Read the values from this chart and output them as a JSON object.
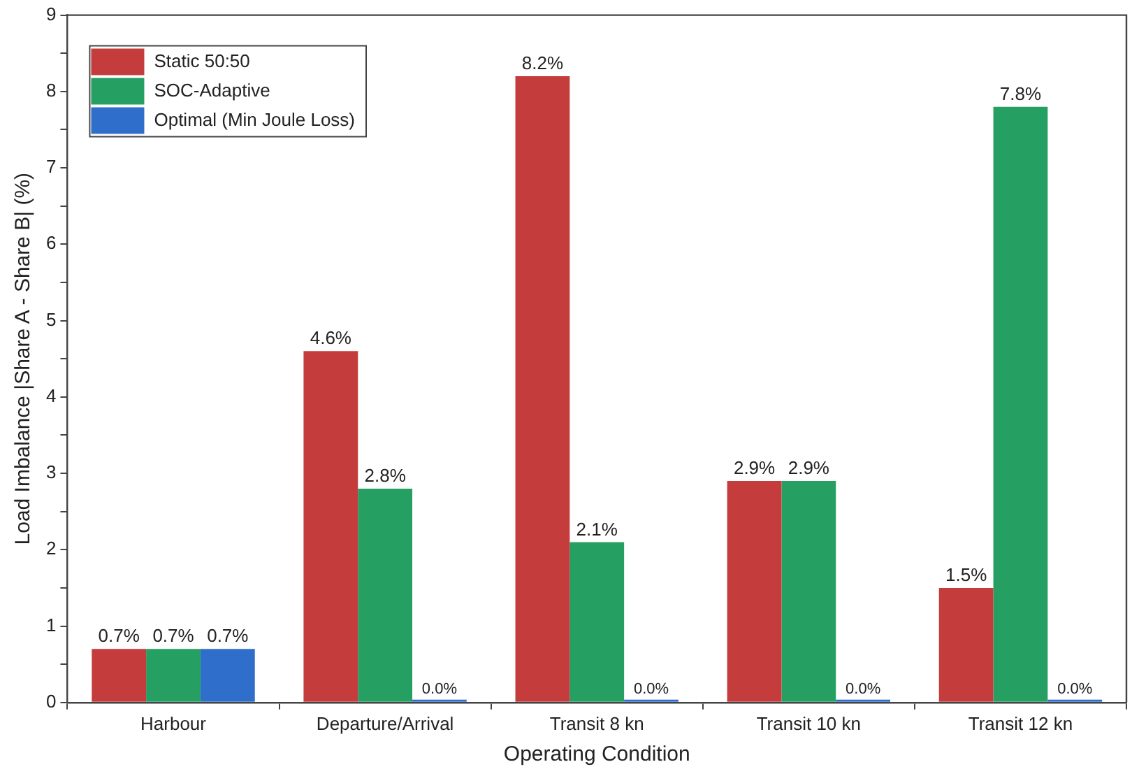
{
  "chart_data": {
    "type": "bar",
    "xlabel": "Operating Condition",
    "ylabel": "Load Imbalance |Share A - Share B| (%)",
    "categories": [
      "Harbour",
      "Departure/Arrival",
      "Transit 8 kn",
      "Transit 10 kn",
      "Transit 12 kn"
    ],
    "series": [
      {
        "name": "Static 50:50",
        "color": "#c43c3c",
        "values": [
          0.7,
          4.6,
          8.2,
          2.9,
          1.5
        ],
        "value_labels": [
          "0.7%",
          "4.6%",
          "8.2%",
          "2.9%",
          "1.5%"
        ]
      },
      {
        "name": "SOC-Adaptive",
        "color": "#25a062",
        "values": [
          0.7,
          2.8,
          2.1,
          2.9,
          7.8
        ],
        "value_labels": [
          "0.7%",
          "2.8%",
          "2.1%",
          "2.9%",
          "7.8%"
        ]
      },
      {
        "name": "Optimal (Min Joule Loss)",
        "color": "#2f6fcb",
        "values": [
          0.7,
          0,
          0,
          0,
          0
        ],
        "value_labels": [
          "0.7%",
          "0.0%",
          "0.0%",
          "0.0%",
          "0.0%"
        ]
      }
    ],
    "ylim": [
      0,
      9
    ],
    "yticks": [
      0,
      {
        "value": 0.5,
        "label": null
      },
      1,
      {
        "value": 1.5,
        "label": null
      },
      2,
      {
        "value": 2.5,
        "label": null
      },
      3,
      {
        "value": 3.5,
        "label": null
      },
      4,
      {
        "value": 4.5,
        "label": null
      },
      5,
      {
        "value": 5.5,
        "label": null
      },
      6,
      {
        "value": 6.5,
        "label": null
      },
      7,
      {
        "value": 7.5,
        "label": null
      },
      8,
      {
        "value": 8.5,
        "label": null
      },
      9
    ],
    "grid": false,
    "legend": "top left"
  }
}
